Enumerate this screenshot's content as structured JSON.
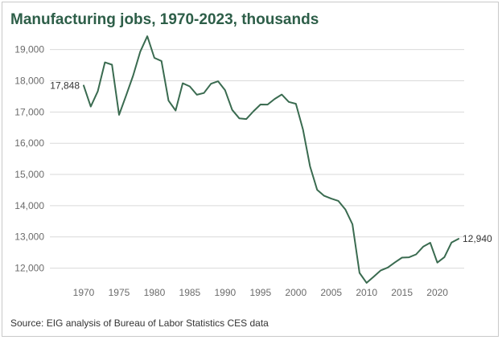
{
  "title": "Manufacturing jobs, 1970-2023, thousands",
  "source": "Source: EIG analysis of Bureau of Labor Statistics CES data",
  "colors": {
    "line": "#3a6b50",
    "title": "#2d5e48",
    "grid": "#d9d9d9",
    "text": "#6b6b6b"
  },
  "chart_data": {
    "type": "line",
    "title": "Manufacturing jobs, 1970-2023, thousands",
    "xlabel": "",
    "ylabel": "",
    "xlim": [
      1970,
      2023
    ],
    "ylim": [
      11500,
      19300
    ],
    "grid": true,
    "x_ticks": [
      1970,
      1975,
      1980,
      1985,
      1990,
      1995,
      2000,
      2005,
      2010,
      2015,
      2020
    ],
    "x_tick_labels": [
      "1970",
      "1975",
      "1980",
      "1985",
      "1990",
      "1995",
      "2000",
      "2005",
      "2010",
      "2015",
      "2020"
    ],
    "y_ticks": [
      12000,
      13000,
      14000,
      15000,
      16000,
      17000,
      18000,
      19000
    ],
    "y_tick_labels": [
      "12,000",
      "13,000",
      "14,000",
      "15,000",
      "16,000",
      "17,000",
      "18,000",
      "19,000"
    ],
    "series": [
      {
        "name": "Manufacturing jobs",
        "x": [
          1970,
          1971,
          1972,
          1973,
          1974,
          1975,
          1976,
          1977,
          1978,
          1979,
          1980,
          1981,
          1982,
          1983,
          1984,
          1985,
          1986,
          1987,
          1988,
          1989,
          1990,
          1991,
          1992,
          1993,
          1994,
          1995,
          1996,
          1997,
          1998,
          1999,
          2000,
          2001,
          2002,
          2003,
          2004,
          2005,
          2006,
          2007,
          2008,
          2009,
          2010,
          2011,
          2012,
          2013,
          2014,
          2015,
          2016,
          2017,
          2018,
          2019,
          2020,
          2021,
          2022,
          2023
        ],
        "values": [
          17848,
          17174,
          17669,
          18589,
          18514,
          16909,
          17531,
          18167,
          18932,
          19426,
          18733,
          18634,
          17363,
          17048,
          17920,
          17819,
          17552,
          17609,
          17906,
          17985,
          17695,
          17068,
          16799,
          16774,
          17021,
          17241,
          17237,
          17419,
          17560,
          17322,
          17263,
          16441,
          15259,
          14509,
          14315,
          14227,
          14155,
          13879,
          13406,
          11847,
          11528,
          11726,
          11927,
          12020,
          12185,
          12336,
          12348,
          12439,
          12688,
          12814,
          12176,
          12353,
          12817,
          12940
        ]
      }
    ],
    "annotations": [
      {
        "year": 1970,
        "text": "17,848"
      },
      {
        "year": 2023,
        "text": "12,940"
      }
    ]
  }
}
